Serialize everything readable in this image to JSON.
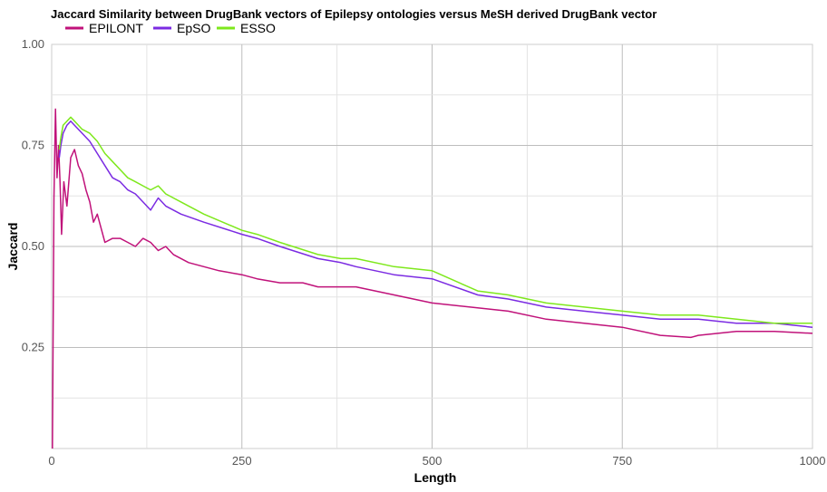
{
  "chart_data": {
    "type": "line",
    "title": "Jaccard Similarity between DrugBank vectors of Epilepsy ontologies versus MeSH derived DrugBank vector",
    "xlabel": "Length",
    "ylabel": "Jaccard",
    "xlim": [
      0,
      1000
    ],
    "ylim": [
      0,
      1.0
    ],
    "x_ticks": [
      0,
      250,
      500,
      750,
      1000
    ],
    "x_tick_labels": [
      "0",
      "250",
      "500",
      "750",
      "1000"
    ],
    "y_ticks": [
      0.25,
      0.5,
      0.75,
      1.0
    ],
    "y_tick_labels": [
      "0.25",
      "0.50",
      "0.75",
      "1.00"
    ],
    "grid": true,
    "legend": "top-left",
    "series": [
      {
        "name": "EPILONT",
        "color": "#c0127a",
        "x": [
          1,
          3,
          5,
          7,
          9,
          11,
          13,
          16,
          20,
          25,
          30,
          35,
          40,
          45,
          50,
          55,
          60,
          70,
          80,
          90,
          100,
          110,
          120,
          130,
          140,
          150,
          160,
          180,
          200,
          220,
          250,
          270,
          300,
          330,
          350,
          400,
          450,
          500,
          550,
          600,
          650,
          700,
          750,
          800,
          840,
          850,
          900,
          950,
          1000
        ],
        "values": [
          0.0,
          0.62,
          0.84,
          0.67,
          0.75,
          0.66,
          0.53,
          0.66,
          0.6,
          0.72,
          0.74,
          0.7,
          0.68,
          0.64,
          0.61,
          0.56,
          0.58,
          0.51,
          0.52,
          0.52,
          0.51,
          0.5,
          0.52,
          0.51,
          0.49,
          0.5,
          0.48,
          0.46,
          0.45,
          0.44,
          0.43,
          0.42,
          0.41,
          0.41,
          0.4,
          0.4,
          0.38,
          0.36,
          0.35,
          0.34,
          0.32,
          0.31,
          0.3,
          0.28,
          0.275,
          0.28,
          0.29,
          0.29,
          0.285
        ]
      },
      {
        "name": "EpSO",
        "color": "#7b2be2",
        "x": [
          10,
          12,
          15,
          20,
          25,
          30,
          40,
          50,
          60,
          70,
          80,
          90,
          100,
          110,
          120,
          130,
          140,
          150,
          170,
          200,
          250,
          270,
          300,
          350,
          380,
          400,
          450,
          500,
          560,
          600,
          650,
          700,
          750,
          800,
          850,
          900,
          950,
          1000
        ],
        "values": [
          0.72,
          0.75,
          0.78,
          0.8,
          0.81,
          0.8,
          0.78,
          0.76,
          0.73,
          0.7,
          0.67,
          0.66,
          0.64,
          0.63,
          0.61,
          0.59,
          0.62,
          0.6,
          0.58,
          0.56,
          0.53,
          0.52,
          0.5,
          0.47,
          0.46,
          0.45,
          0.43,
          0.42,
          0.38,
          0.37,
          0.35,
          0.34,
          0.33,
          0.32,
          0.32,
          0.31,
          0.31,
          0.3
        ]
      },
      {
        "name": "ESSO",
        "color": "#7ee81c",
        "x": [
          10,
          12,
          15,
          20,
          25,
          30,
          40,
          50,
          60,
          70,
          80,
          90,
          100,
          110,
          120,
          130,
          140,
          150,
          170,
          200,
          250,
          270,
          300,
          350,
          380,
          400,
          450,
          500,
          560,
          600,
          650,
          700,
          750,
          800,
          850,
          900,
          950,
          1000
        ],
        "values": [
          0.74,
          0.77,
          0.8,
          0.81,
          0.82,
          0.81,
          0.79,
          0.78,
          0.76,
          0.73,
          0.71,
          0.69,
          0.67,
          0.66,
          0.65,
          0.64,
          0.65,
          0.63,
          0.61,
          0.58,
          0.54,
          0.53,
          0.51,
          0.48,
          0.47,
          0.47,
          0.45,
          0.44,
          0.39,
          0.38,
          0.36,
          0.35,
          0.34,
          0.33,
          0.33,
          0.32,
          0.31,
          0.31
        ]
      }
    ]
  }
}
